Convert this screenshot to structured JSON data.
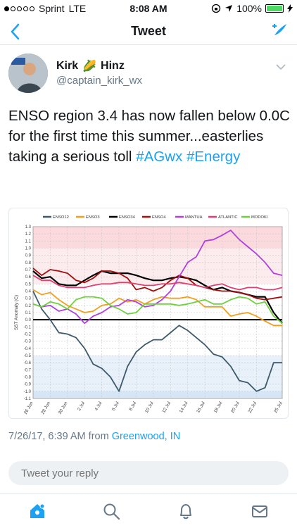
{
  "status": {
    "carrier": "Sprint",
    "network": "LTE",
    "time": "8:08 AM",
    "battery": "100%",
    "signal_bars": 1,
    "signal_total": 5
  },
  "nav": {
    "title": "Tweet",
    "back_icon": "chevron-left-icon",
    "compose_icon": "compose-tweet-icon"
  },
  "tweet": {
    "author_first": "Kirk",
    "author_last": "Hinz",
    "author_emoji": "🌽",
    "handle": "@captain_kirk_wx",
    "text_plain": "ENSO region 3.4 has now fallen below 0.0C for the first time this summer...easterlies taking a serious toll",
    "hashtag_1": "#AGwx",
    "hashtag_2": "#Energy",
    "timestamp": "7/26/17, 6:39 AM from",
    "source": "Greenwood, IN"
  },
  "reply": {
    "placeholder": "Tweet your reply"
  },
  "tabs": [
    "home-icon",
    "search-icon",
    "notifications-icon",
    "messages-icon"
  ],
  "colors": {
    "accent": "#1da1f2",
    "ENSO12": "#3d5a6c",
    "ENSO3": "#f0a020",
    "ENSO34": "#000000",
    "ENSO4": "#a01010",
    "MANTUA": "#b040e0",
    "ATLANTIC": "#e04070",
    "MODOKI": "#70d040"
  },
  "chart_data": {
    "type": "line",
    "title": "",
    "xlabel": "",
    "ylabel": "SST Anomaly (C)",
    "ylim": [
      -1.1,
      1.3
    ],
    "grid": true,
    "legend": "top",
    "shaded_bands": [
      {
        "from": 1.0,
        "to": 1.3,
        "color": "#fcd9dd"
      },
      {
        "from": 0.5,
        "to": 1.0,
        "color": "#fdeced"
      },
      {
        "from": -1.0,
        "to": -0.5,
        "color": "#e8f0f9"
      },
      {
        "from": -1.1,
        "to": -1.0,
        "color": "#d6e6f6"
      }
    ],
    "y_ticks": [
      "1.3",
      "1.2",
      "1.1",
      "1.0",
      "0.9",
      "0.8",
      "0.7",
      "0.6",
      "0.5",
      "0.4",
      "0.3",
      "0.2",
      "0.1",
      "0.0",
      "-0.1",
      "-0.2",
      "-0.3",
      "-0.4",
      "-0.5",
      "-0.6",
      "-0.7",
      "-0.8",
      "-0.9",
      "-1.0",
      "-1.1"
    ],
    "x_ticks": [
      "26 Jun",
      "28 Jun",
      "30 Jun",
      "2 Jul",
      "4 Jul",
      "6 Jul",
      "8 Jul",
      "10 Jul",
      "12 Jul",
      "14 Jul",
      "16 Jul",
      "18 Jul",
      "20 Jul",
      "22 Jul",
      "25 Jul"
    ],
    "x_days": [
      0,
      1,
      2,
      3,
      4,
      5,
      6,
      7,
      8,
      9,
      10,
      11,
      12,
      13,
      14,
      15,
      16,
      17,
      18,
      19,
      20,
      21,
      22,
      23,
      24,
      25,
      26,
      27,
      28,
      29
    ],
    "series": [
      {
        "name": "ENSO12",
        "values": [
          0.4,
          0.15,
          0.0,
          -0.18,
          -0.2,
          -0.25,
          -0.4,
          -0.62,
          -0.68,
          -0.8,
          -1.0,
          -0.65,
          -0.45,
          -0.35,
          -0.28,
          -0.28,
          -0.18,
          -0.08,
          -0.15,
          -0.25,
          -0.35,
          -0.48,
          -0.52,
          -0.65,
          -0.85,
          -0.88,
          -1.0,
          -0.95,
          -0.6,
          -0.6
        ]
      },
      {
        "name": "ENSO3",
        "values": [
          0.42,
          0.35,
          0.38,
          0.28,
          0.2,
          0.15,
          0.1,
          0.12,
          0.2,
          0.22,
          0.3,
          0.25,
          0.28,
          0.22,
          0.28,
          0.32,
          0.3,
          0.3,
          0.32,
          0.28,
          0.18,
          0.18,
          0.18,
          0.05,
          0.08,
          0.1,
          0.05,
          -0.02,
          -0.08,
          -0.08
        ]
      },
      {
        "name": "ENSO34",
        "values": [
          0.68,
          0.58,
          0.6,
          0.5,
          0.48,
          0.48,
          0.55,
          0.62,
          0.68,
          0.65,
          0.65,
          0.65,
          0.62,
          0.58,
          0.55,
          0.55,
          0.58,
          0.6,
          0.58,
          0.55,
          0.48,
          0.42,
          0.45,
          0.4,
          0.38,
          0.35,
          0.32,
          0.32,
          0.1,
          -0.05
        ]
      },
      {
        "name": "ENSO4",
        "values": [
          0.72,
          0.62,
          0.7,
          0.68,
          0.65,
          0.55,
          0.52,
          0.58,
          0.68,
          0.68,
          0.65,
          0.58,
          0.42,
          0.45,
          0.4,
          0.45,
          0.55,
          0.62,
          0.58,
          0.48,
          0.45,
          0.42,
          0.4,
          0.4,
          0.38,
          0.35,
          0.3,
          0.28,
          0.3,
          0.32
        ]
      },
      {
        "name": "MANTUA",
        "values": [
          0.22,
          0.18,
          0.2,
          0.12,
          0.15,
          0.08,
          -0.05,
          0.05,
          0.1,
          0.18,
          0.2,
          0.28,
          0.25,
          0.18,
          0.2,
          0.28,
          0.4,
          0.6,
          0.8,
          0.88,
          1.1,
          1.12,
          1.18,
          1.25,
          1.12,
          1.02,
          0.92,
          0.8,
          0.65,
          0.62
        ]
      },
      {
        "name": "ATLANTIC",
        "values": [
          0.62,
          0.55,
          0.55,
          0.48,
          0.45,
          0.45,
          0.45,
          0.48,
          0.5,
          0.5,
          0.52,
          0.52,
          0.5,
          0.48,
          0.48,
          0.5,
          0.5,
          0.52,
          0.5,
          0.48,
          0.45,
          0.48,
          0.5,
          0.45,
          0.42,
          0.45,
          0.45,
          0.42,
          0.42,
          0.45
        ]
      },
      {
        "name": "MODOKI",
        "values": [
          0.22,
          0.18,
          0.25,
          0.22,
          0.15,
          0.28,
          0.32,
          0.32,
          0.3,
          0.2,
          0.15,
          0.08,
          0.1,
          0.22,
          0.22,
          0.22,
          0.22,
          0.2,
          0.22,
          0.25,
          0.28,
          0.22,
          0.22,
          0.28,
          0.32,
          0.3,
          0.22,
          0.25,
          0.05,
          -0.05
        ]
      }
    ]
  }
}
